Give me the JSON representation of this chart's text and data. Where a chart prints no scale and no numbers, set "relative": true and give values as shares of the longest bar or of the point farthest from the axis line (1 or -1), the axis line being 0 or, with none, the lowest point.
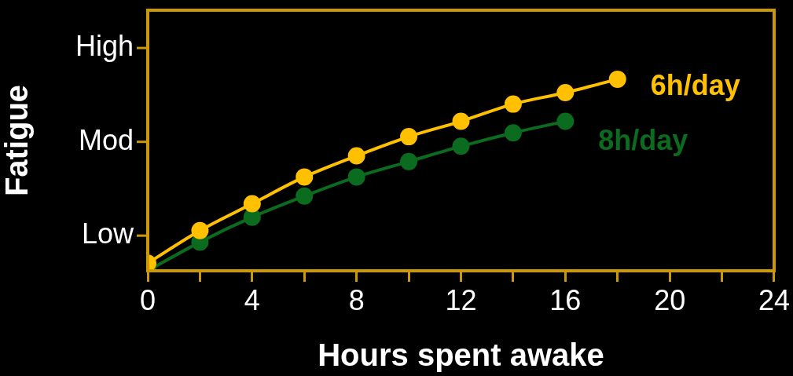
{
  "chart_data": {
    "type": "line",
    "xlabel": "Hours spent awake",
    "ylabel": "Fatigue",
    "xlim": [
      0,
      24
    ],
    "xticks": [
      0,
      {
        "value": 2,
        "label": null
      },
      4,
      {
        "value": 6,
        "label": null
      },
      8,
      {
        "value": 10,
        "label": null
      },
      12,
      {
        "value": 14,
        "label": null
      },
      16,
      {
        "value": 18,
        "label": null
      },
      20,
      {
        "value": 22,
        "label": null
      },
      24
    ],
    "relative": true,
    "annotations": [
      "Low",
      "Mod",
      "High"
    ],
    "grid": false,
    "legend": false,
    "marker": "circle",
    "line_style": "solid",
    "series": [
      {
        "name": "6h/day",
        "color": "#ffc000",
        "x": [
          0,
          2,
          4,
          6,
          8,
          10,
          12,
          14,
          16,
          18
        ],
        "values": [
          0.04,
          0.21,
          0.35,
          0.49,
          0.6,
          0.7,
          0.78,
          0.87,
          0.93,
          1
        ]
      },
      {
        "name": "8h/day",
        "color": "#0b6b1e",
        "x": [
          0,
          2,
          4,
          6,
          8,
          10,
          12,
          14,
          16
        ],
        "values": [
          0,
          0.15,
          0.28,
          0.39,
          0.49,
          0.57,
          0.65,
          0.72,
          0.78
        ]
      }
    ]
  }
}
